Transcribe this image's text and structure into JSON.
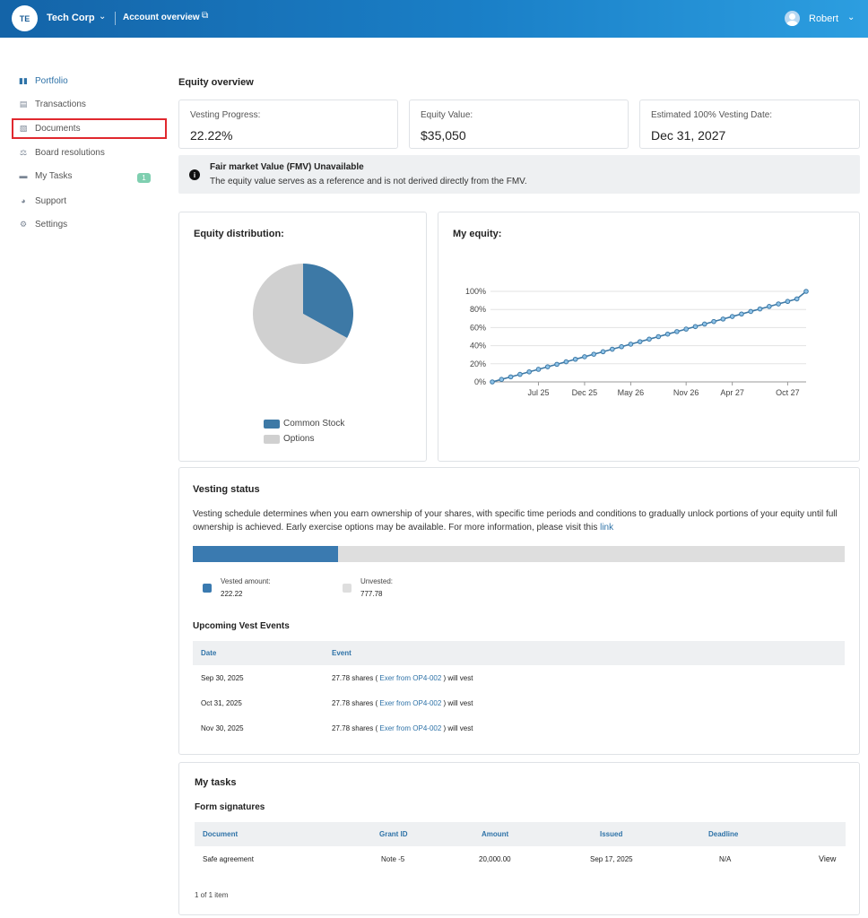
{
  "header": {
    "company_initials": "TE",
    "company_name": "Tech Corp",
    "chevron": "⌄",
    "account_link": "Account overview",
    "external_icon": "⧉",
    "user_name": "Robert",
    "user_chevron": "⌄"
  },
  "sidebar": {
    "items": [
      {
        "label": "Portfolio",
        "icon": "bars-icon",
        "glyph": "▮▮",
        "active": true
      },
      {
        "label": "Transactions",
        "icon": "clipboard-icon",
        "glyph": "▤",
        "active": false
      },
      {
        "label": "Documents",
        "icon": "document-icon",
        "glyph": "▧",
        "active": false
      },
      {
        "label": "Board resolutions",
        "icon": "gavel-icon",
        "glyph": "⚖",
        "active": false
      },
      {
        "label": "My Tasks",
        "icon": "tray-icon",
        "glyph": "▬",
        "active": false,
        "badge": "1"
      },
      {
        "label": "Support",
        "icon": "support-icon",
        "glyph": "◕",
        "active": false
      },
      {
        "label": "Settings",
        "icon": "gear-icon",
        "glyph": "⚙",
        "active": false
      }
    ]
  },
  "equity_overview": {
    "title": "Equity overview",
    "stats": [
      {
        "label": "Vesting Progress:",
        "value": "22.22%"
      },
      {
        "label": "Equity Value:",
        "value": "$35,050"
      },
      {
        "label": "Estimated 100% Vesting Date:",
        "value": "Dec 31, 2027"
      }
    ],
    "banner": {
      "icon": "info-icon",
      "title": "Fair market Value (FMV) Unavailable",
      "text": "The equity value serves as a reference and is not derived directly from the FMV."
    }
  },
  "distribution": {
    "title": "Equity distribution:",
    "legend": [
      "Common Stock",
      "Options"
    ]
  },
  "my_equity": {
    "title": "My equity:"
  },
  "chart_data": [
    {
      "type": "pie",
      "title": "Equity distribution:",
      "labels": [
        "Common Stock",
        "Options"
      ],
      "values": [
        33,
        67
      ],
      "colors": [
        "#3d79a6",
        "#d0d0d0"
      ]
    },
    {
      "type": "line",
      "title": "My equity:",
      "x_ticks": [
        "Jul 25",
        "Dec 25",
        "May 26",
        "Nov 26",
        "Apr 27",
        "Oct 27"
      ],
      "y_ticks": [
        "0%",
        "20%",
        "40%",
        "60%",
        "80%",
        "100%"
      ],
      "ylim": [
        0,
        100
      ],
      "grid": true,
      "x": [
        "Feb 25",
        "Mar 25",
        "Apr 25",
        "May 25",
        "Jun 25",
        "Jul 25",
        "Aug 25",
        "Sep 25",
        "Oct 25",
        "Nov 25",
        "Dec 25",
        "Jan 26",
        "Feb 26",
        "Mar 26",
        "Apr 26",
        "May 26",
        "Jun 26",
        "Jul 26",
        "Aug 26",
        "Sep 26",
        "Oct 26",
        "Nov 26",
        "Dec 26",
        "Jan 27",
        "Feb 27",
        "Mar 27",
        "Apr 27",
        "May 27",
        "Jun 27",
        "Jul 27",
        "Aug 27",
        "Sep 27",
        "Oct 27",
        "Nov 27",
        "Dec 27"
      ],
      "values": [
        0,
        2.78,
        5.56,
        8.33,
        11.11,
        13.89,
        16.67,
        19.44,
        22.22,
        25,
        27.78,
        30.56,
        33.33,
        36.11,
        38.89,
        41.67,
        44.44,
        47.22,
        50,
        52.78,
        55.56,
        58.33,
        61.11,
        63.89,
        66.67,
        69.44,
        72.22,
        75,
        77.78,
        80.56,
        83.33,
        86.11,
        88.89,
        91.67,
        100
      ],
      "color": "#3d79a6"
    }
  ],
  "vesting": {
    "title": "Vesting status",
    "desc_main": "Vesting schedule determines when you earn ownership of your shares, with specific time periods and conditions to gradually unlock portions of your equity until full ownership is achieved. Early exercise options may be available. For more information, please visit this ",
    "desc_link": "link",
    "progress": 0.2222,
    "vested_label": "Vested amount:",
    "vested_value": "222.22",
    "unvested_label": "Unvested:",
    "unvested_value": "777.78",
    "upcoming_title": "Upcoming Vest Events",
    "columns": [
      "Date",
      "Event"
    ],
    "rows": [
      {
        "date": "Sep 30, 2025",
        "pre": "27.78 shares ( ",
        "link": "Exer from OP4-002",
        "post": " ) will vest"
      },
      {
        "date": "Oct 31, 2025",
        "pre": "27.78 shares ( ",
        "link": "Exer from OP4-002",
        "post": " ) will vest"
      },
      {
        "date": "Nov 30, 2025",
        "pre": "27.78 shares ( ",
        "link": "Exer from OP4-002",
        "post": " ) will vest"
      }
    ]
  },
  "tasks": {
    "title": "My tasks",
    "subtitle": "Form signatures",
    "columns": [
      "Document",
      "Grant ID",
      "Amount",
      "Issued",
      "Deadline"
    ],
    "rows": [
      {
        "document": "Safe agreement",
        "grant_id": "Note -5",
        "amount": "20,000.00",
        "issued": "Sep 17, 2025",
        "deadline": "N/A",
        "action": "View"
      }
    ],
    "pagination": "1 of 1 item"
  }
}
